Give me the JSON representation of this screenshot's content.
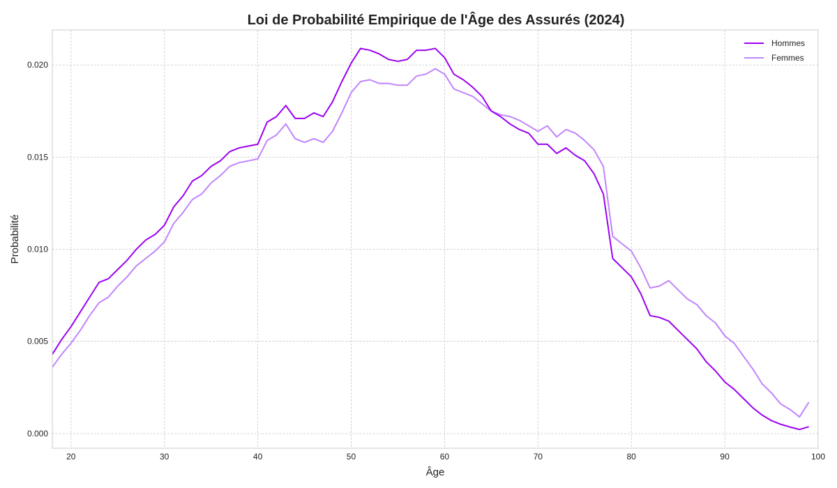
{
  "chart_data": {
    "type": "line",
    "title": "Loi de Probabilité Empirique de l'Âge des Assurés (2024)",
    "xlabel": "Âge",
    "ylabel": "Probabilité",
    "xlim": [
      18,
      100
    ],
    "ylim": [
      -0.0008,
      0.0219
    ],
    "xticks": [
      20,
      30,
      40,
      50,
      60,
      70,
      80,
      90,
      100
    ],
    "yticks": [
      0.0,
      0.005,
      0.01,
      0.015,
      0.02
    ],
    "ytick_labels": [
      "0.000",
      "0.005",
      "0.010",
      "0.015",
      "0.020"
    ],
    "grid": true,
    "legend_position": "top-right",
    "x": [
      18,
      19,
      20,
      21,
      22,
      23,
      24,
      25,
      26,
      27,
      28,
      29,
      30,
      31,
      32,
      33,
      34,
      35,
      36,
      37,
      38,
      39,
      40,
      41,
      42,
      43,
      44,
      45,
      46,
      47,
      48,
      49,
      50,
      51,
      52,
      53,
      54,
      55,
      56,
      57,
      58,
      59,
      60,
      61,
      62,
      63,
      64,
      65,
      66,
      67,
      68,
      69,
      70,
      71,
      72,
      73,
      74,
      75,
      76,
      77,
      78,
      79,
      80,
      81,
      82,
      83,
      84,
      85,
      86,
      87,
      88,
      89,
      90,
      91,
      92,
      93,
      94,
      95,
      96,
      97,
      98,
      99
    ],
    "series": [
      {
        "name": "Hommes",
        "color": "#9b00f0",
        "values": [
          0.0043,
          0.0051,
          0.0058,
          0.0066,
          0.0074,
          0.0082,
          0.0084,
          0.0089,
          0.0094,
          0.01,
          0.0105,
          0.0108,
          0.0113,
          0.0123,
          0.0129,
          0.0137,
          0.014,
          0.0145,
          0.0148,
          0.0153,
          0.0155,
          0.0156,
          0.0157,
          0.0169,
          0.0172,
          0.0178,
          0.0171,
          0.0171,
          0.0174,
          0.0172,
          0.018,
          0.0191,
          0.0201,
          0.0209,
          0.0208,
          0.0206,
          0.0203,
          0.0202,
          0.0203,
          0.0208,
          0.0208,
          0.0209,
          0.0204,
          0.0195,
          0.0192,
          0.0188,
          0.0183,
          0.0175,
          0.0172,
          0.0168,
          0.0165,
          0.0163,
          0.0157,
          0.0157,
          0.0152,
          0.0155,
          0.0151,
          0.0148,
          0.0141,
          0.013,
          0.0095,
          0.009,
          0.0085,
          0.0076,
          0.0064,
          0.0063,
          0.0061,
          0.0056,
          0.0051,
          0.0046,
          0.0039,
          0.0034,
          0.0028,
          0.0024,
          0.0019,
          0.0014,
          0.001,
          0.0007,
          0.0005,
          0.00035,
          0.00022,
          0.00037
        ]
      },
      {
        "name": "Femmes",
        "color": "#c084fc",
        "values": [
          0.0036,
          0.0043,
          0.0049,
          0.0056,
          0.0064,
          0.0071,
          0.0074,
          0.008,
          0.0085,
          0.0091,
          0.0095,
          0.0099,
          0.0104,
          0.0114,
          0.012,
          0.0127,
          0.013,
          0.0136,
          0.014,
          0.0145,
          0.0147,
          0.0148,
          0.0149,
          0.0159,
          0.0162,
          0.0168,
          0.016,
          0.0158,
          0.016,
          0.0158,
          0.0164,
          0.0174,
          0.0185,
          0.0191,
          0.0192,
          0.019,
          0.019,
          0.0189,
          0.0189,
          0.0194,
          0.0195,
          0.0198,
          0.0195,
          0.0187,
          0.0185,
          0.0183,
          0.0179,
          0.0175,
          0.0173,
          0.0172,
          0.017,
          0.0167,
          0.0164,
          0.0167,
          0.0161,
          0.0165,
          0.0163,
          0.0159,
          0.0154,
          0.0145,
          0.0107,
          0.0103,
          0.0099,
          0.009,
          0.0079,
          0.008,
          0.0083,
          0.0078,
          0.0073,
          0.007,
          0.0064,
          0.006,
          0.0053,
          0.0049,
          0.0042,
          0.0035,
          0.0027,
          0.0022,
          0.0016,
          0.0013,
          0.0009,
          0.0017
        ]
      }
    ]
  }
}
